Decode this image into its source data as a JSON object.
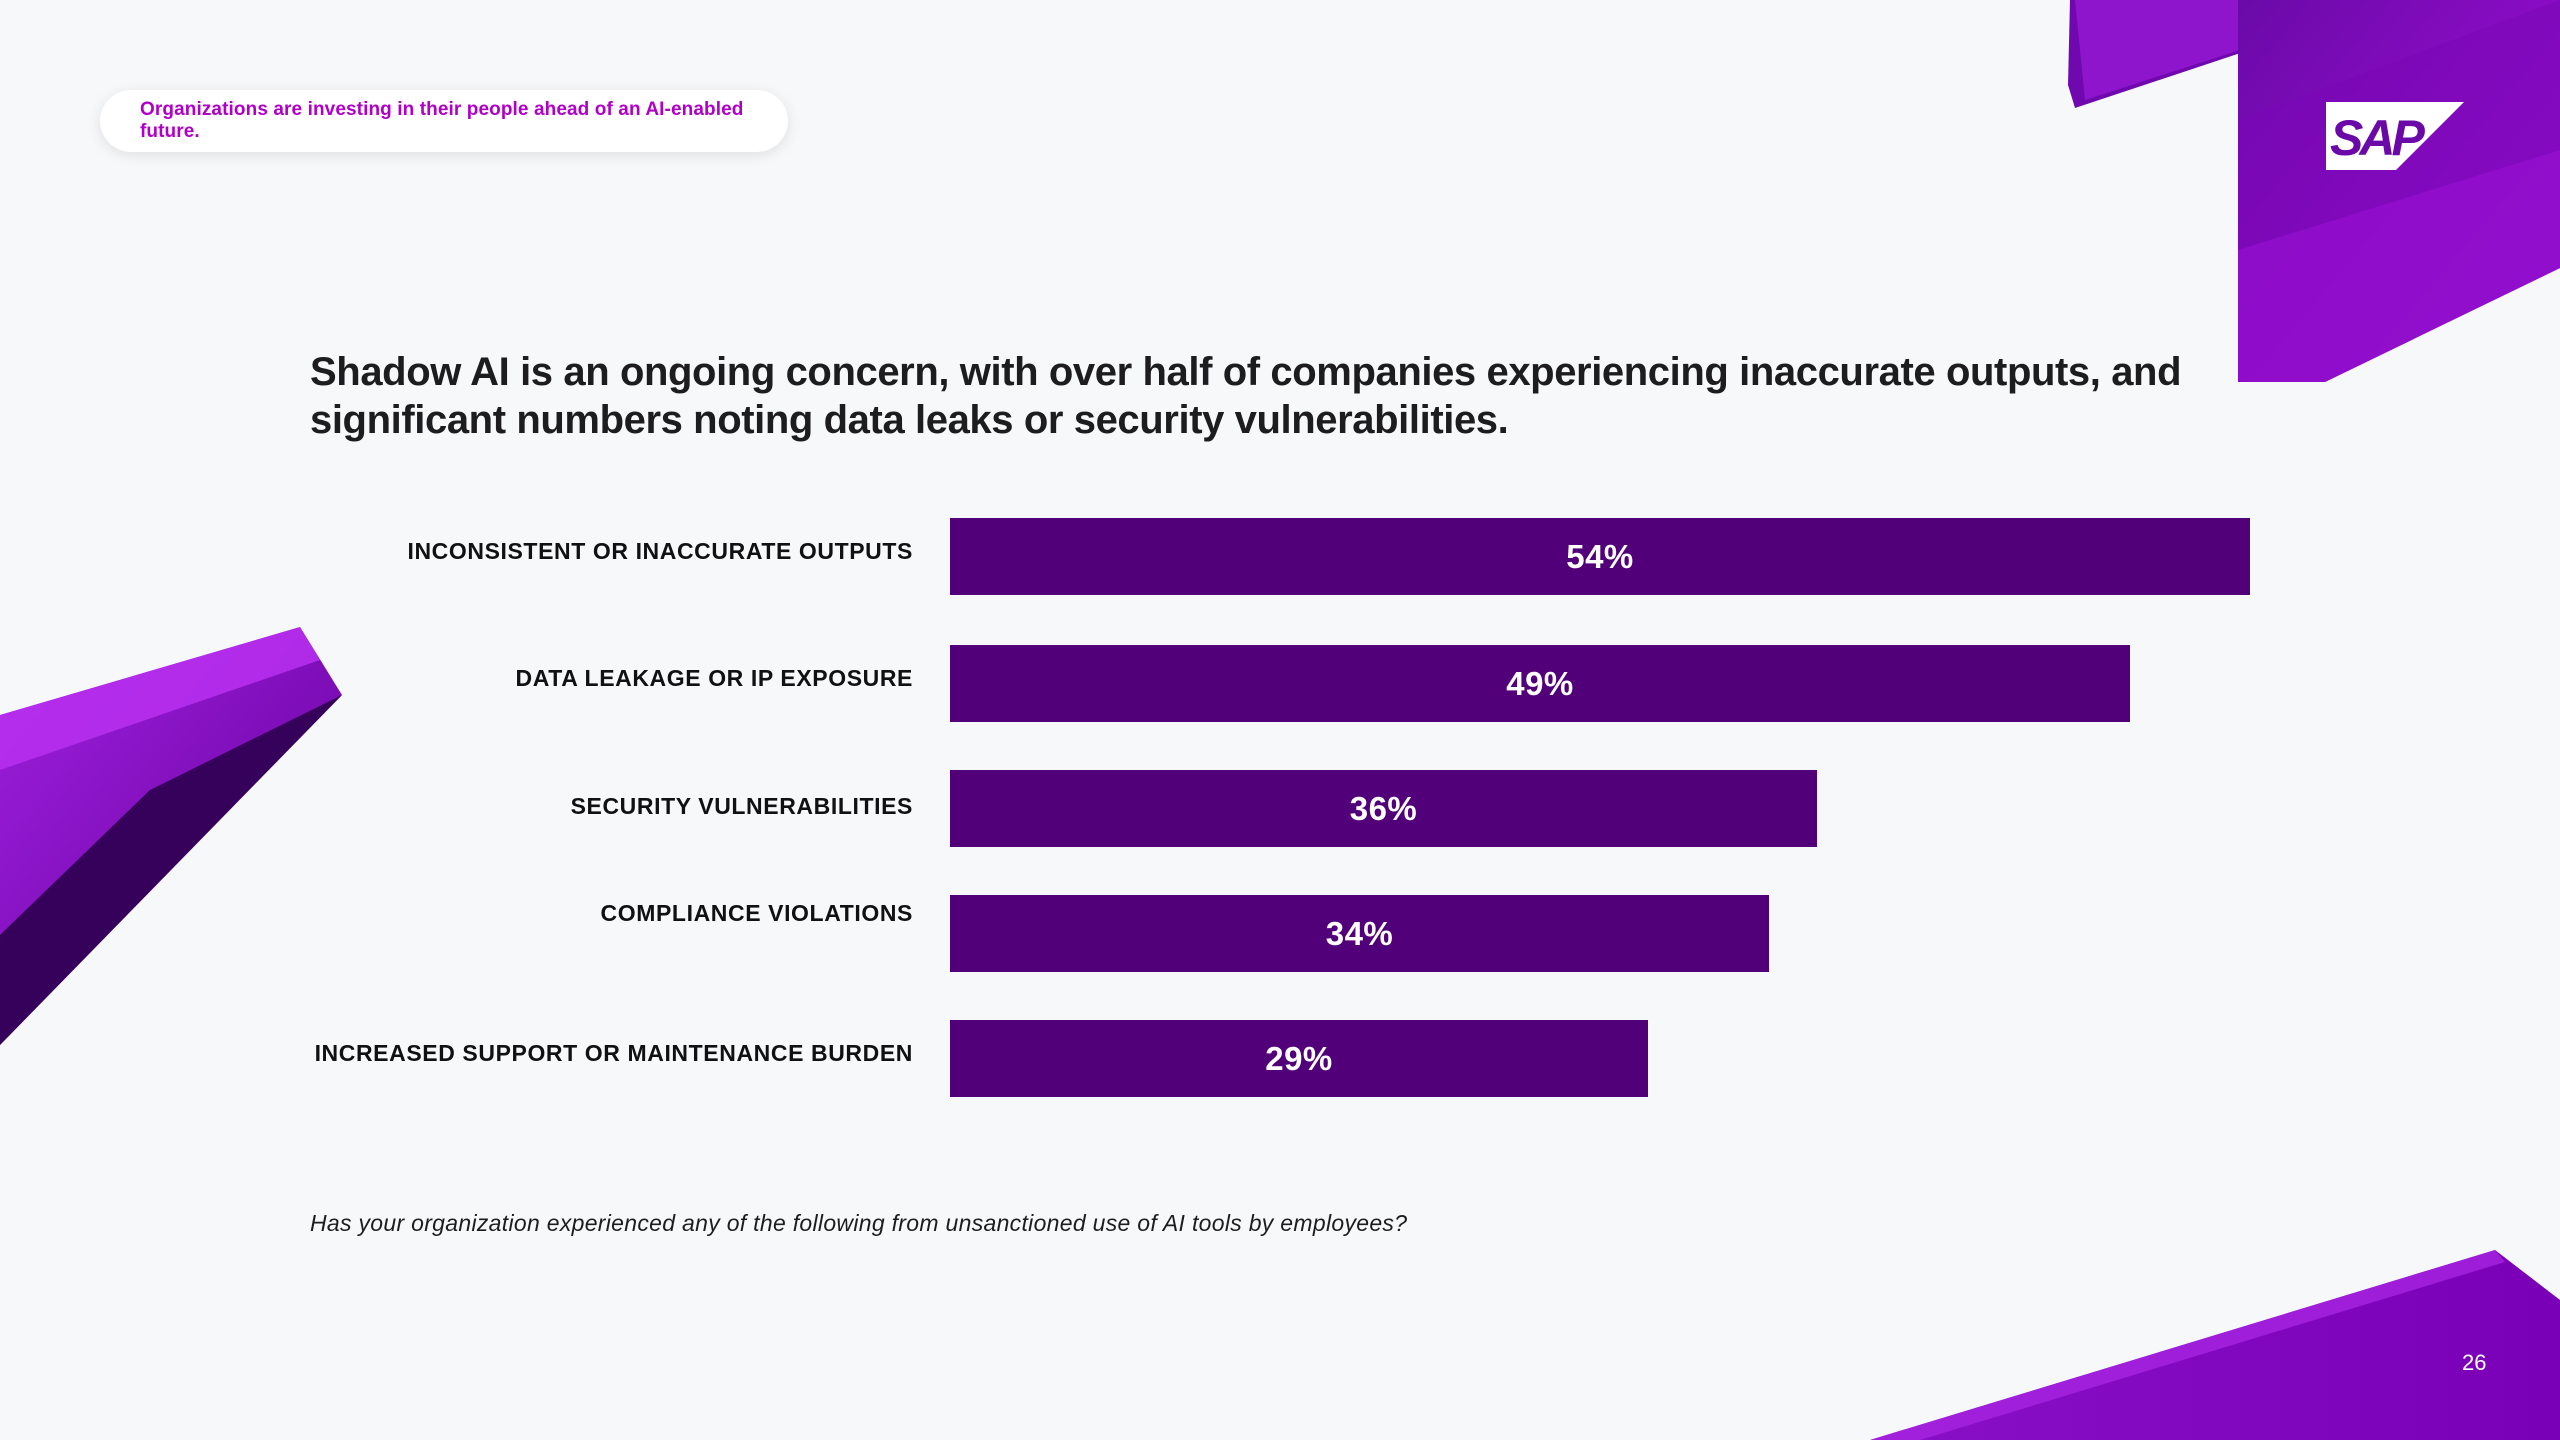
{
  "header": {
    "tagline": "Organizations are investing in their people ahead of an AI-enabled future.",
    "logo_text": "SAP"
  },
  "headline": {
    "line1": "Shadow AI is an ongoing concern, with over half of companies experiencing inaccurate outputs, and",
    "line2": "significant numbers noting data leaks or security vulnerabilities."
  },
  "chart_data": {
    "type": "bar",
    "orientation": "horizontal",
    "title": "Shadow AI is an ongoing concern, with over half of companies experiencing inaccurate outputs, and significant numbers noting data leaks or security vulnerabilities.",
    "categories": [
      "INCONSISTENT OR INACCURATE OUTPUTS",
      "DATA LEAKAGE OR IP EXPOSURE",
      "SECURITY VULNERABILITIES",
      "COMPLIANCE VIOLATIONS",
      "INCREASED SUPPORT OR MAINTENANCE BURDEN"
    ],
    "values": [
      54,
      49,
      36,
      34,
      29
    ],
    "value_labels": [
      "54%",
      "49%",
      "36%",
      "34%",
      "29%"
    ],
    "unit": "%",
    "xlim": [
      0,
      54
    ],
    "bar_color": "#52007a",
    "grid": false,
    "legend": "none"
  },
  "footer": {
    "question": "Has your organization experienced any of the following from unsanctioned use of AI tools by employees?",
    "page_number": "26"
  },
  "colors": {
    "accent": "#b000c8",
    "bar": "#52007a",
    "background": "#f7f8fa",
    "decor_purple": "#8a0cc4"
  }
}
